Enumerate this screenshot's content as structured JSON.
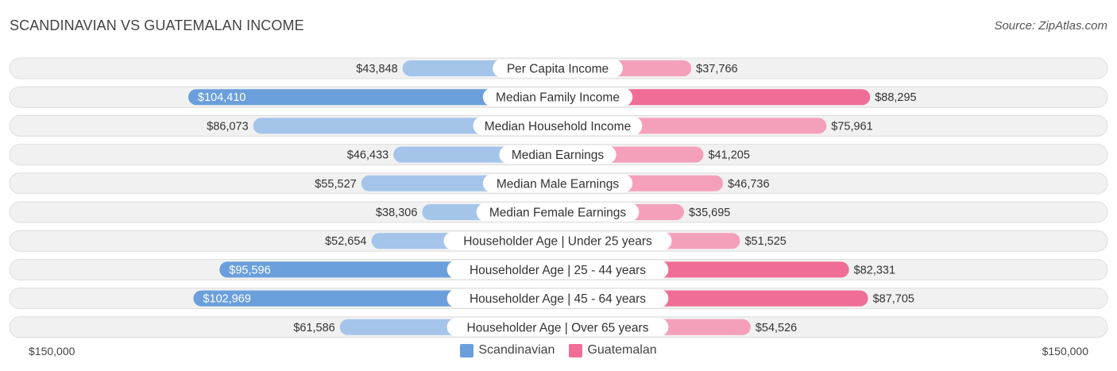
{
  "header": {
    "title": "SCANDINAVIAN VS GUATEMALAN INCOME",
    "source": "Source: ZipAtlas.com"
  },
  "colors": {
    "scandinavian_light": "#a4c4ea",
    "scandinavian_strong": "#6a9fdc",
    "guatemalan_light": "#f5a0bb",
    "guatemalan_strong": "#f06d96",
    "row_bg": "#f1f1f1",
    "row_border": "#dedede"
  },
  "chart_data": {
    "type": "bar",
    "orientation": "horizontal-diverging",
    "title": "SCANDINAVIAN VS GUATEMALAN INCOME",
    "xlim": [
      -150000,
      150000
    ],
    "axis_labels": {
      "left": "$150,000",
      "right": "$150,000"
    },
    "legend_position": "bottom-center",
    "series": [
      {
        "name": "Scandinavian",
        "side": "left"
      },
      {
        "name": "Guatemalan",
        "side": "right"
      }
    ],
    "rows": [
      {
        "category": "Per Capita Income",
        "left": 43848,
        "left_label": "$43,848",
        "right": 37766,
        "right_label": "$37,766",
        "strong": false
      },
      {
        "category": "Median Family Income",
        "left": 104410,
        "left_label": "$104,410",
        "right": 88295,
        "right_label": "$88,295",
        "strong": true
      },
      {
        "category": "Median Household Income",
        "left": 86073,
        "left_label": "$86,073",
        "right": 75961,
        "right_label": "$75,961",
        "strong": false
      },
      {
        "category": "Median Earnings",
        "left": 46433,
        "left_label": "$46,433",
        "right": 41205,
        "right_label": "$41,205",
        "strong": false
      },
      {
        "category": "Median Male Earnings",
        "left": 55527,
        "left_label": "$55,527",
        "right": 46736,
        "right_label": "$46,736",
        "strong": false
      },
      {
        "category": "Median Female Earnings",
        "left": 38306,
        "left_label": "$38,306",
        "right": 35695,
        "right_label": "$35,695",
        "strong": false
      },
      {
        "category": "Householder Age | Under 25 years",
        "left": 52654,
        "left_label": "$52,654",
        "right": 51525,
        "right_label": "$51,525",
        "strong": false
      },
      {
        "category": "Householder Age | 25 - 44 years",
        "left": 95596,
        "left_label": "$95,596",
        "right": 82331,
        "right_label": "$82,331",
        "strong": true
      },
      {
        "category": "Householder Age | 45 - 64 years",
        "left": 102969,
        "left_label": "$102,969",
        "right": 87705,
        "right_label": "$87,705",
        "strong": true
      },
      {
        "category": "Householder Age | Over 65 years",
        "left": 61586,
        "left_label": "$61,586",
        "right": 54526,
        "right_label": "$54,526",
        "strong": false
      }
    ]
  }
}
